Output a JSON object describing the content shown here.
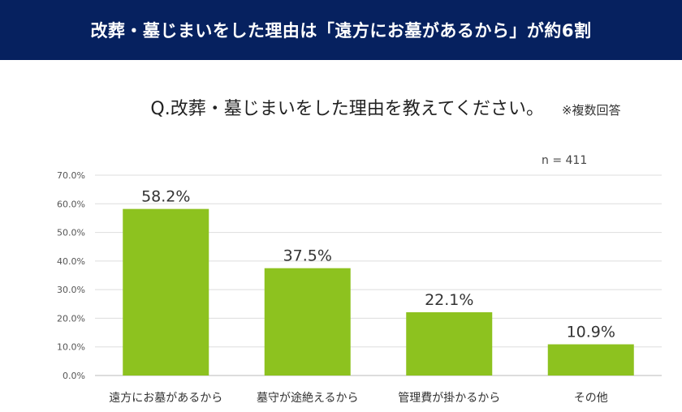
{
  "header": {
    "title": "改葬・墓じまいをした理由は「遠方にお墓があるから」が約6割"
  },
  "question": "Q.改葬・墓じまいをした理由を教えてください。",
  "note": "※複数回答",
  "sample": "n = 411",
  "chart_data": {
    "type": "bar",
    "categories": [
      "遠方にお墓があるから",
      "墓守が途絶えるから",
      "管理費が掛かるから",
      "その他"
    ],
    "values": [
      58.2,
      37.5,
      22.1,
      10.9
    ],
    "data_labels": [
      "58.2%",
      "37.5%",
      "22.1%",
      "10.9%"
    ],
    "yticks": [
      "0.0%",
      "10.0%",
      "20.0%",
      "30.0%",
      "40.0%",
      "50.0%",
      "60.0%",
      "70.0%"
    ],
    "ylim": [
      0,
      70
    ],
    "grid": true,
    "bar_color": "#8dc21f"
  }
}
